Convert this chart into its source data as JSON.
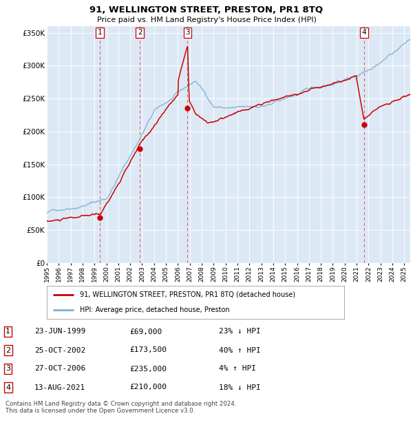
{
  "title1": "91, WELLINGTON STREET, PRESTON, PR1 8TQ",
  "title2": "Price paid vs. HM Land Registry's House Price Index (HPI)",
  "bg_color": "#dce9f5",
  "hpi_color": "#7bafd4",
  "price_color": "#cc0000",
  "dot_color": "#cc0000",
  "vline_color": "#ee4444",
  "ylim": [
    0,
    360000
  ],
  "yticks": [
    0,
    50000,
    100000,
    150000,
    200000,
    250000,
    300000,
    350000
  ],
  "ytick_labels": [
    "£0",
    "£50K",
    "£100K",
    "£150K",
    "£200K",
    "£250K",
    "£300K",
    "£350K"
  ],
  "sales": [
    {
      "num": 1,
      "date_x": 1999.47,
      "price": 69000,
      "label": "23-JUN-1999",
      "amount": "£69,000",
      "pct": "23% ↓ HPI"
    },
    {
      "num": 2,
      "date_x": 2002.81,
      "price": 173500,
      "label": "25-OCT-2002",
      "amount": "£173,500",
      "pct": "40% ↑ HPI"
    },
    {
      "num": 3,
      "date_x": 2006.81,
      "price": 235000,
      "label": "27-OCT-2006",
      "amount": "£235,000",
      "pct": "4% ↑ HPI"
    },
    {
      "num": 4,
      "date_x": 2021.61,
      "price": 210000,
      "label": "13-AUG-2021",
      "amount": "£210,000",
      "pct": "18% ↓ HPI"
    }
  ],
  "legend_red_label": "91, WELLINGTON STREET, PRESTON, PR1 8TQ (detached house)",
  "legend_blue_label": "HPI: Average price, detached house, Preston",
  "footer": "Contains HM Land Registry data © Crown copyright and database right 2024.\nThis data is licensed under the Open Government Licence v3.0.",
  "xmin": 1995.0,
  "xmax": 2025.5
}
